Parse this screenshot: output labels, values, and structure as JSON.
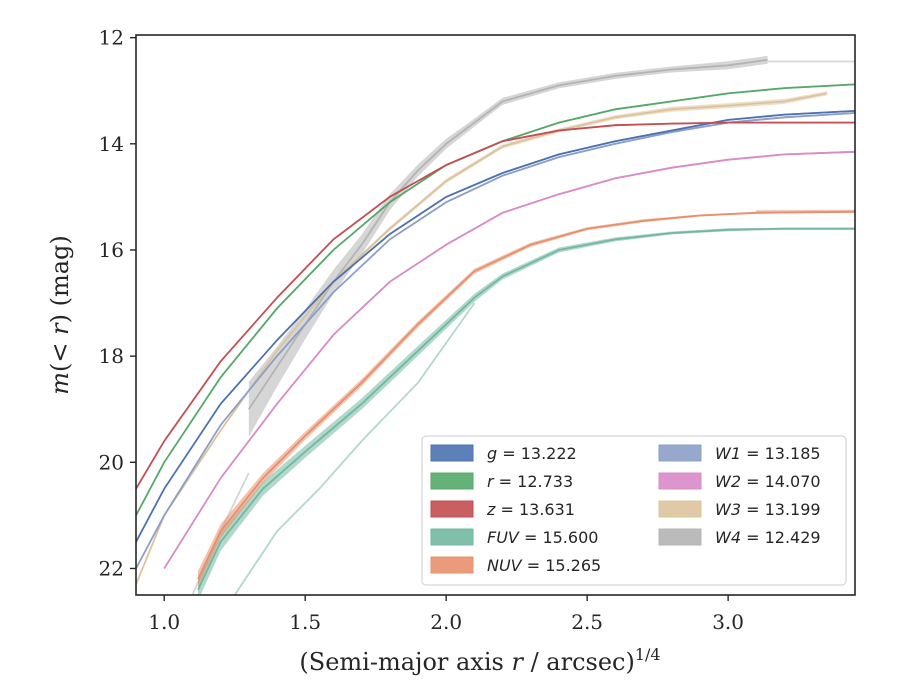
{
  "chart_data": {
    "type": "line",
    "title": "",
    "xlabel": "(Semi-major axis r / arcsec)",
    "xlabel_var": "r",
    "xlabel_exp": "1/4",
    "ylabel": "m(< r) (mag)",
    "xlim": [
      0.9,
      3.45
    ],
    "ylim": [
      22.5,
      11.95
    ],
    "y_inverted": true,
    "xticks": [
      1.0,
      1.5,
      2.0,
      2.5,
      3.0
    ],
    "xtick_labels": [
      "1.0",
      "1.5",
      "2.0",
      "2.5",
      "3.0"
    ],
    "yticks": [
      12,
      14,
      16,
      18,
      20,
      22
    ],
    "ytick_labels": [
      "12",
      "14",
      "16",
      "18",
      "20",
      "22"
    ],
    "grid": false,
    "legend_position": "lower-right",
    "series": [
      {
        "name": "g = 13.222",
        "band": "g",
        "total": "13.222",
        "color": "#4c72b0",
        "points": [
          [
            0.9,
            21.5
          ],
          [
            1.0,
            20.5
          ],
          [
            1.2,
            18.9
          ],
          [
            1.4,
            17.7
          ],
          [
            1.6,
            16.6
          ],
          [
            1.8,
            15.7
          ],
          [
            2.0,
            15.0
          ],
          [
            2.2,
            14.55
          ],
          [
            2.4,
            14.2
          ],
          [
            2.6,
            13.95
          ],
          [
            2.8,
            13.75
          ],
          [
            3.0,
            13.55
          ],
          [
            3.2,
            13.45
          ],
          [
            3.45,
            13.38
          ]
        ],
        "band_width": [
          2.2,
          2.2,
          2.0,
          1.8,
          1.8,
          1.8,
          1.8,
          1.8,
          1.8,
          1.8,
          1.8,
          1.8,
          1.8,
          1.8
        ]
      },
      {
        "name": "r = 12.733",
        "band": "r",
        "total": "12.733",
        "color": "#55a868",
        "points": [
          [
            0.9,
            21.0
          ],
          [
            1.0,
            20.0
          ],
          [
            1.2,
            18.4
          ],
          [
            1.4,
            17.1
          ],
          [
            1.6,
            16.0
          ],
          [
            1.8,
            15.1
          ],
          [
            2.0,
            14.4
          ],
          [
            2.2,
            13.95
          ],
          [
            2.4,
            13.6
          ],
          [
            2.6,
            13.35
          ],
          [
            2.8,
            13.2
          ],
          [
            3.0,
            13.05
          ],
          [
            3.2,
            12.95
          ],
          [
            3.45,
            12.88
          ]
        ],
        "band_width": [
          2.2,
          2.2,
          2.0,
          1.8,
          1.8,
          1.8,
          1.8,
          1.8,
          1.8,
          1.8,
          1.8,
          1.8,
          1.8,
          1.8
        ]
      },
      {
        "name": "z = 13.631",
        "band": "z",
        "total": "13.631",
        "color": "#c44e52",
        "points": [
          [
            0.9,
            20.5
          ],
          [
            1.0,
            19.6
          ],
          [
            1.2,
            18.1
          ],
          [
            1.4,
            16.9
          ],
          [
            1.6,
            15.8
          ],
          [
            1.8,
            15.0
          ],
          [
            2.0,
            14.4
          ],
          [
            2.2,
            13.95
          ],
          [
            2.4,
            13.75
          ],
          [
            2.6,
            13.65
          ],
          [
            2.8,
            13.62
          ],
          [
            3.0,
            13.6
          ],
          [
            3.2,
            13.6
          ],
          [
            3.45,
            13.6
          ]
        ],
        "band_width": [
          2.2,
          2.2,
          2.0,
          1.8,
          1.8,
          1.8,
          1.8,
          1.8,
          1.8,
          1.8,
          1.8,
          1.8,
          1.8,
          1.8
        ]
      },
      {
        "name": "FUV = 15.600",
        "band": "FUV",
        "total": "15.600",
        "color": "#72b8a1",
        "points": [
          [
            1.12,
            22.4
          ],
          [
            1.2,
            21.5
          ],
          [
            1.35,
            20.5
          ],
          [
            1.5,
            19.8
          ],
          [
            1.7,
            18.9
          ],
          [
            1.9,
            17.9
          ],
          [
            2.1,
            16.9
          ],
          [
            2.2,
            16.5
          ],
          [
            2.4,
            16.0
          ],
          [
            2.6,
            15.8
          ],
          [
            2.8,
            15.68
          ],
          [
            3.0,
            15.62
          ],
          [
            3.2,
            15.6
          ],
          [
            3.45,
            15.6
          ]
        ],
        "band_width": [
          22,
          18,
          14,
          12,
          11,
          10,
          8,
          6,
          5,
          4,
          3,
          3,
          2,
          2
        ]
      },
      {
        "name": "NUV = 15.265",
        "band": "NUV",
        "total": "15.265",
        "color": "#e8906c",
        "points": [
          [
            1.12,
            22.2
          ],
          [
            1.2,
            21.3
          ],
          [
            1.35,
            20.3
          ],
          [
            1.5,
            19.5
          ],
          [
            1.7,
            18.5
          ],
          [
            1.9,
            17.4
          ],
          [
            2.1,
            16.4
          ],
          [
            2.3,
            15.9
          ],
          [
            2.5,
            15.6
          ],
          [
            2.7,
            15.45
          ],
          [
            2.9,
            15.35
          ],
          [
            3.1,
            15.3
          ],
          [
            3.45,
            15.28
          ]
        ],
        "band_width": [
          16,
          14,
          10,
          8,
          7,
          6,
          5,
          4,
          3,
          3,
          2,
          2,
          2
        ]
      },
      {
        "name": "W1 = 13.185",
        "band": "W1",
        "total": "13.185",
        "color": "#8c9fc8",
        "points": [
          [
            0.9,
            22.0
          ],
          [
            1.0,
            21.0
          ],
          [
            1.2,
            19.3
          ],
          [
            1.4,
            18.0
          ],
          [
            1.6,
            16.8
          ],
          [
            1.8,
            15.8
          ],
          [
            2.0,
            15.1
          ],
          [
            2.2,
            14.6
          ],
          [
            2.4,
            14.25
          ],
          [
            2.6,
            14.0
          ],
          [
            2.8,
            13.78
          ],
          [
            3.0,
            13.6
          ],
          [
            3.2,
            13.5
          ],
          [
            3.45,
            13.42
          ]
        ],
        "band_width": [
          2.2,
          2.2,
          2.0,
          1.8,
          1.8,
          1.8,
          1.8,
          1.8,
          1.8,
          1.8,
          1.8,
          1.8,
          1.8,
          1.8
        ]
      },
      {
        "name": "W2 = 14.070",
        "band": "W2",
        "total": "14.070",
        "color": "#d98bc8",
        "points": [
          [
            1.0,
            22.0
          ],
          [
            1.2,
            20.3
          ],
          [
            1.4,
            18.9
          ],
          [
            1.6,
            17.6
          ],
          [
            1.8,
            16.6
          ],
          [
            2.0,
            15.9
          ],
          [
            2.2,
            15.3
          ],
          [
            2.4,
            14.95
          ],
          [
            2.6,
            14.65
          ],
          [
            2.8,
            14.45
          ],
          [
            3.0,
            14.3
          ],
          [
            3.2,
            14.2
          ],
          [
            3.45,
            14.15
          ]
        ],
        "band_width": [
          2.2,
          2.2,
          2.0,
          1.8,
          1.8,
          1.8,
          1.8,
          1.8,
          1.8,
          1.8,
          1.8,
          1.8,
          1.8
        ]
      },
      {
        "name": "W3 = 13.199",
        "band": "W3",
        "total": "13.199",
        "color": "#dcc39c",
        "points": [
          [
            0.9,
            22.3
          ],
          [
            1.0,
            21.0
          ],
          [
            1.2,
            19.4
          ],
          [
            1.4,
            17.9
          ],
          [
            1.6,
            16.6
          ],
          [
            1.8,
            15.6
          ],
          [
            2.0,
            14.7
          ],
          [
            2.2,
            14.05
          ],
          [
            2.4,
            13.75
          ],
          [
            2.6,
            13.5
          ],
          [
            2.8,
            13.35
          ],
          [
            3.0,
            13.28
          ],
          [
            3.2,
            13.2
          ],
          [
            3.35,
            13.05
          ]
        ],
        "band_width": [
          2.2,
          2.2,
          2.0,
          2.0,
          3,
          4,
          4,
          4,
          4,
          4,
          5,
          5,
          5,
          4
        ]
      },
      {
        "name": "W4 = 12.429",
        "band": "W4",
        "total": "12.429",
        "color": "#b4b4b4",
        "points": [
          [
            1.3,
            19.0
          ],
          [
            1.4,
            18.2
          ],
          [
            1.5,
            17.4
          ],
          [
            1.6,
            16.6
          ],
          [
            1.7,
            15.9
          ],
          [
            1.8,
            15.1
          ],
          [
            1.9,
            14.5
          ],
          [
            2.0,
            14.0
          ],
          [
            2.1,
            13.6
          ],
          [
            2.2,
            13.2
          ],
          [
            2.4,
            12.9
          ],
          [
            2.6,
            12.72
          ],
          [
            2.8,
            12.6
          ],
          [
            3.0,
            12.52
          ],
          [
            3.14,
            12.42
          ]
        ],
        "band_width": [
          55,
          40,
          30,
          24,
          20,
          16,
          12,
          10,
          8,
          7,
          6,
          6,
          6,
          8,
          8
        ]
      }
    ],
    "faint_extensions": [
      {
        "color": "#b4b4b4",
        "points": [
          [
            1.1,
            22.5
          ],
          [
            1.2,
            21.3
          ],
          [
            1.3,
            20.2
          ]
        ]
      },
      {
        "color": "#b4b4b4",
        "points": [
          [
            3.14,
            12.45
          ],
          [
            3.45,
            12.45
          ]
        ]
      },
      {
        "color": "#72b8a1",
        "points": [
          [
            1.25,
            22.5
          ],
          [
            1.4,
            21.3
          ],
          [
            1.55,
            20.5
          ],
          [
            1.7,
            19.6
          ],
          [
            1.9,
            18.5
          ],
          [
            2.1,
            17.0
          ]
        ]
      },
      {
        "color": "#72b8a1",
        "points": [
          [
            3.2,
            15.6
          ],
          [
            3.45,
            15.6
          ]
        ]
      },
      {
        "color": "#e8906c",
        "points": [
          [
            3.1,
            15.27
          ],
          [
            3.45,
            15.26
          ]
        ]
      },
      {
        "color": "#d98bc8",
        "points": [
          [
            3.2,
            14.2
          ],
          [
            3.45,
            14.15
          ]
        ]
      }
    ]
  },
  "legend": {
    "col1": [
      {
        "var": "g",
        "value": "13.222",
        "color": "#4c72b0"
      },
      {
        "var": "r",
        "value": "12.733",
        "color": "#55a868"
      },
      {
        "var": "z",
        "value": "13.631",
        "color": "#c44e52"
      },
      {
        "var": "FUV",
        "value": "15.600",
        "color": "#72b8a1"
      },
      {
        "var": "NUV",
        "value": "15.265",
        "color": "#e8906c"
      }
    ],
    "col2": [
      {
        "var": "W1",
        "value": "13.185",
        "color": "#8c9fc8"
      },
      {
        "var": "W2",
        "value": "14.070",
        "color": "#d98bc8"
      },
      {
        "var": "W3",
        "value": "13.199",
        "color": "#dcc39c"
      },
      {
        "var": "W4",
        "value": "12.429",
        "color": "#b4b4b4"
      }
    ]
  }
}
